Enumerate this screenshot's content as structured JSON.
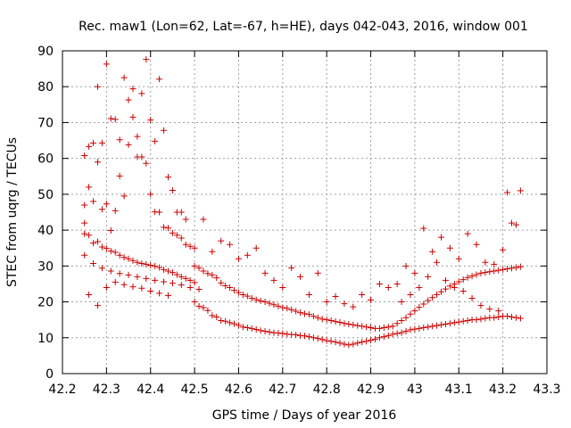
{
  "chart_data": {
    "type": "scatter",
    "title": "Rec. maw1 (Lon=62, Lat=-67, h=HE), days 042-043, 2016, window 001",
    "xlabel": "GPS time / Days of year 2016",
    "ylabel": "STEC from uqrg / TECUs",
    "xlim": [
      42.2,
      43.3
    ],
    "ylim": [
      0,
      90
    ],
    "xticks": [
      "42.2",
      "42.3",
      "42.4",
      "42.5",
      "42.6",
      "42.7",
      "42.8",
      "42.9",
      "43",
      "43.1",
      "43.2",
      "43.3"
    ],
    "yticks": [
      "0",
      "10",
      "20",
      "30",
      "40",
      "50",
      "60",
      "70",
      "80",
      "90"
    ],
    "grid": true,
    "marker": "plus",
    "color": "#cc0000",
    "series": [
      {
        "x": [
          42.25,
          42.25,
          42.26,
          42.27,
          42.28,
          42.29,
          42.3,
          42.31,
          42.32,
          42.33,
          42.34,
          42.35,
          42.36,
          42.37,
          42.38,
          42.39,
          42.4,
          42.41,
          42.42,
          42.43,
          42.44,
          42.45,
          42.46,
          42.47,
          42.48,
          42.25,
          42.26,
          42.27,
          42.28,
          42.29,
          42.3,
          42.31,
          42.32,
          42.33,
          42.34,
          42.35,
          42.36,
          42.37,
          42.38,
          42.39,
          42.4,
          42.41,
          42.42,
          42.43,
          42.44,
          42.45,
          42.46,
          42.47,
          42.48,
          42.49,
          42.25,
          42.26,
          42.27,
          42.28,
          42.29,
          42.3,
          42.31,
          42.32,
          42.33,
          42.34,
          42.35,
          42.36,
          42.37,
          42.38,
          42.39,
          42.4,
          42.41,
          42.42,
          42.43,
          42.44,
          42.45,
          42.46,
          42.47,
          42.48,
          42.49,
          42.5,
          42.25,
          42.27,
          42.29,
          42.31,
          42.33,
          42.35,
          42.37,
          42.39,
          42.41,
          42.43,
          42.45,
          42.47,
          42.49,
          42.51,
          42.26,
          42.28,
          42.3,
          42.32,
          42.34,
          42.36,
          42.38,
          42.4,
          42.42,
          42.44,
          42.5,
          42.51,
          42.52,
          42.53,
          42.54,
          42.55,
          42.56,
          42.57,
          42.58,
          42.59,
          42.6,
          42.61,
          42.62,
          42.63,
          42.64,
          42.65,
          42.66,
          42.67,
          42.68,
          42.69,
          42.7,
          42.71,
          42.72,
          42.73,
          42.74,
          42.75,
          42.5,
          42.51,
          42.52,
          42.53,
          42.54,
          42.55,
          42.56,
          42.57,
          42.58,
          42.59,
          42.6,
          42.61,
          42.62,
          42.63,
          42.64,
          42.65,
          42.66,
          42.67,
          42.68,
          42.69,
          42.7,
          42.71,
          42.72,
          42.73,
          42.74,
          42.75,
          42.5,
          42.52,
          42.54,
          42.56,
          42.58,
          42.6,
          42.62,
          42.64,
          42.66,
          42.68,
          42.7,
          42.72,
          42.74,
          42.76,
          42.77,
          42.78,
          42.79,
          42.8,
          42.81,
          42.82,
          42.83,
          42.84,
          42.85,
          42.86,
          42.87,
          42.88,
          42.89,
          42.9,
          42.91,
          42.92,
          42.93,
          42.94,
          42.95,
          42.76,
          42.77,
          42.78,
          42.79,
          42.8,
          42.81,
          42.82,
          42.83,
          42.84,
          42.85,
          42.86,
          42.87,
          42.88,
          42.89,
          42.9,
          42.91,
          42.92,
          42.93,
          42.94,
          42.95,
          42.76,
          42.78,
          42.8,
          42.82,
          42.84,
          42.86,
          42.88,
          42.9,
          42.92,
          42.94,
          42.96,
          42.97,
          42.98,
          42.99,
          43.0,
          43.01,
          43.02,
          43.03,
          43.04,
          43.05,
          43.06,
          43.07,
          43.08,
          43.09,
          43.1,
          43.11,
          43.12,
          43.13,
          43.14,
          43.15,
          43.16,
          43.17,
          43.18,
          43.19,
          43.2,
          43.21,
          43.22,
          43.23,
          43.24,
          42.96,
          42.97,
          42.98,
          42.99,
          43.0,
          43.01,
          43.02,
          43.03,
          43.04,
          43.05,
          43.06,
          43.07,
          43.08,
          43.09,
          43.1,
          43.11,
          43.12,
          43.13,
          43.14,
          43.15,
          43.16,
          43.17,
          43.18,
          43.19,
          43.2,
          43.21,
          43.22,
          43.23,
          43.24,
          42.96,
          42.98,
          43.0,
          43.02,
          43.04,
          43.06,
          43.08,
          43.1,
          43.12,
          43.14,
          43.16,
          43.18,
          43.2,
          43.22,
          43.24,
          42.97,
          42.99,
          43.01,
          43.03,
          43.05,
          43.07,
          43.09,
          43.11,
          43.13,
          43.15,
          43.17,
          43.19,
          43.21,
          43.23
        ],
        "y": [
          60.8,
          47.0,
          63.3,
          64.3,
          59.0,
          64.3,
          86.3,
          71.1,
          70.9,
          65.2,
          82.5,
          76.3,
          71.5,
          66.1,
          78.1,
          87.6,
          70.7,
          64.8,
          82.1,
          67.8,
          54.8,
          51.1,
          45.0,
          45.0,
          43.0,
          42.0,
          52.0,
          48.0,
          80.0,
          45.8,
          47.3,
          39.9,
          45.4,
          55.1,
          49.5,
          63.8,
          79.4,
          60.4,
          60.4,
          58.6,
          50.0,
          45.1,
          45.0,
          40.8,
          40.6,
          39.2,
          38.6,
          37.8,
          36.0,
          35.5,
          39.0,
          38.6,
          36.4,
          36.8,
          35.3,
          34.9,
          34.2,
          33.8,
          33.0,
          32.4,
          32.0,
          31.5,
          31.0,
          30.7,
          30.5,
          30.2,
          30.0,
          29.6,
          29.0,
          28.6,
          28.2,
          27.6,
          27.0,
          26.5,
          26.0,
          25.4,
          33.0,
          30.7,
          29.4,
          28.6,
          27.9,
          27.5,
          27.0,
          26.5,
          26.0,
          25.6,
          25.2,
          24.7,
          24.0,
          23.5,
          22.0,
          19.0,
          24.0,
          25.5,
          24.8,
          24.2,
          23.8,
          23.0,
          22.4,
          21.8,
          20.0,
          18.8,
          18.4,
          17.6,
          16.2,
          15.8,
          14.8,
          14.6,
          14.2,
          13.9,
          13.5,
          13.0,
          12.8,
          12.6,
          12.3,
          12.0,
          11.8,
          11.6,
          11.4,
          11.3,
          11.2,
          11.0,
          10.9,
          10.8,
          10.6,
          10.5,
          30.0,
          29.5,
          28.6,
          27.9,
          27.5,
          26.7,
          25.3,
          24.5,
          24.0,
          23.2,
          22.6,
          22.0,
          21.6,
          21.0,
          20.6,
          20.3,
          20.0,
          19.6,
          19.2,
          18.8,
          18.4,
          18.2,
          17.8,
          17.4,
          17.0,
          16.7,
          35.0,
          43.0,
          34.0,
          37.0,
          36.0,
          32.0,
          33.0,
          35.0,
          28.0,
          26.0,
          24.0,
          29.5,
          27.0,
          10.3,
          10.0,
          9.8,
          9.5,
          9.2,
          9.0,
          8.8,
          8.5,
          8.2,
          8.0,
          8.2,
          8.5,
          8.8,
          9.0,
          9.3,
          9.6,
          10.0,
          10.3,
          10.6,
          11.0,
          16.5,
          16.0,
          15.6,
          15.2,
          15.0,
          14.8,
          14.5,
          14.3,
          14.0,
          13.8,
          13.6,
          13.4,
          13.2,
          13.0,
          12.8,
          12.6,
          12.6,
          12.8,
          13.0,
          13.2,
          22.0,
          28.0,
          20.0,
          21.5,
          19.5,
          18.6,
          22.0,
          20.5,
          25.0,
          24.0,
          11.2,
          11.4,
          11.8,
          12.2,
          12.4,
          12.6,
          12.8,
          13.0,
          13.2,
          13.4,
          13.6,
          13.8,
          14.0,
          14.2,
          14.4,
          14.6,
          14.8,
          15.0,
          15.0,
          15.2,
          15.4,
          15.6,
          15.6,
          15.8,
          16.0,
          16.0,
          15.8,
          15.6,
          15.4,
          14.0,
          14.8,
          15.6,
          16.6,
          17.5,
          18.5,
          19.4,
          20.4,
          21.2,
          22.0,
          22.8,
          23.6,
          24.4,
          25.0,
          25.6,
          26.2,
          26.8,
          27.2,
          27.6,
          28.0,
          28.2,
          28.4,
          28.6,
          28.8,
          29.0,
          29.2,
          29.4,
          29.6,
          29.8,
          25.0,
          30.0,
          28.0,
          40.5,
          34.0,
          38.0,
          35.0,
          32.0,
          39.0,
          36.0,
          31.0,
          30.5,
          34.5,
          42.0,
          51.0,
          20.0,
          22.0,
          24.0,
          27.0,
          31.0,
          26.0,
          24.0,
          23.0,
          21.0,
          19.0,
          18.0,
          17.5,
          50.5,
          41.5
        ]
      }
    ]
  }
}
